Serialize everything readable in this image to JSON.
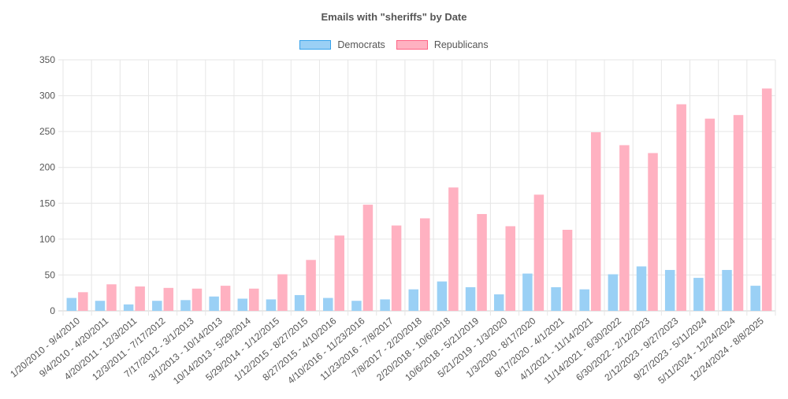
{
  "chart_data": {
    "type": "bar",
    "title": "Emails with \"sheriffs\" by Date",
    "xlabel": "",
    "ylabel": "",
    "ylim": [
      0,
      350
    ],
    "yticks": [
      0,
      50,
      100,
      150,
      200,
      250,
      300,
      350
    ],
    "grid": true,
    "legend_position": "top-center",
    "categories": [
      "1/20/2010 - 9/4/2010",
      "9/4/2010 - 4/20/2011",
      "4/20/2011 - 12/3/2011",
      "12/3/2011 - 7/17/2012",
      "7/17/2012 - 3/1/2013",
      "3/1/2013 - 10/14/2013",
      "10/14/2013 - 5/29/2014",
      "5/29/2014 - 1/12/2015",
      "1/12/2015 - 8/27/2015",
      "8/27/2015 - 4/10/2016",
      "4/10/2016 - 11/23/2016",
      "11/23/2016 - 7/8/2017",
      "7/8/2017 - 2/20/2018",
      "2/20/2018 - 10/6/2018",
      "10/6/2018 - 5/21/2019",
      "5/21/2019 - 1/3/2020",
      "1/3/2020 - 8/17/2020",
      "8/17/2020 - 4/1/2021",
      "4/1/2021 - 11/14/2021",
      "11/14/2021 - 6/30/2022",
      "6/30/2022 - 2/12/2023",
      "2/12/2023 - 9/27/2023",
      "9/27/2023 - 5/11/2024",
      "5/11/2024 - 12/24/2024",
      "12/24/2024 - 8/8/2025"
    ],
    "series": [
      {
        "name": "Democrats",
        "color": "#9ad0f5",
        "border": "#36a2eb",
        "values": [
          18,
          14,
          9,
          14,
          15,
          20,
          17,
          16,
          22,
          18,
          14,
          16,
          30,
          41,
          33,
          23,
          52,
          33,
          30,
          51,
          62,
          57,
          46,
          57,
          35
        ]
      },
      {
        "name": "Republicans",
        "color": "#ffb1c1",
        "border": "#ff6384",
        "values": [
          26,
          37,
          34,
          32,
          31,
          35,
          31,
          51,
          71,
          105,
          148,
          119,
          129,
          172,
          135,
          118,
          162,
          113,
          249,
          231,
          220,
          288,
          268,
          273,
          310
        ]
      }
    ]
  }
}
